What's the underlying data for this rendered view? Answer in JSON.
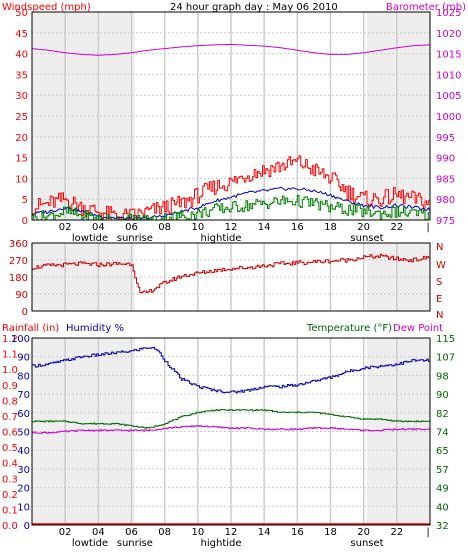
{
  "title": "24 hour graph day : May 06 2010",
  "colors": {
    "wind_speed": "#ff0000",
    "wind_avg": "#0000cc",
    "wind_low": "#008000",
    "barometer": "#cc00cc",
    "direction": "#cc0000",
    "humidity": "#0000aa",
    "temperature": "#006600",
    "dew_point": "#cc00cc",
    "rainfall": "#ff0000",
    "grid": "#cccccc",
    "shade": "#eeeeee"
  },
  "x_ticks": [
    "02",
    "04",
    "06",
    "08",
    "10",
    "12",
    "14",
    "16",
    "18",
    "20",
    "22"
  ],
  "events": [
    {
      "label": "lowtide",
      "hour": 3.5
    },
    {
      "label": "sunrise",
      "hour": 6.2
    },
    {
      "label": "hightide",
      "hour": 11.4
    },
    {
      "label": "sunset",
      "hour": 20.2
    }
  ],
  "chart_data": [
    {
      "type": "line",
      "left_label": "Windspeed (mph)",
      "right_label": "Barometer (mb)",
      "left_ticks": [
        "0",
        "5",
        "10",
        "15",
        "20",
        "25",
        "30",
        "35",
        "40",
        "45",
        "50"
      ],
      "right_ticks": [
        "975",
        "980",
        "985",
        "990",
        "995",
        "1000",
        "1005",
        "1010",
        "1015",
        "1020",
        "1025"
      ],
      "ylim_left": [
        0,
        50
      ],
      "ylim_right": [
        975,
        1025
      ],
      "series": [
        {
          "key": "barometer",
          "axis": "right",
          "x": [
            0,
            1,
            2,
            3,
            4,
            5,
            6,
            7,
            8,
            9,
            10,
            11,
            12,
            13,
            14,
            15,
            16,
            17,
            18,
            19,
            20,
            21,
            22,
            23,
            24
          ],
          "values": [
            1016.2,
            1015.8,
            1015.2,
            1014.8,
            1014.6,
            1014.8,
            1015.2,
            1015.8,
            1016.2,
            1016.6,
            1016.9,
            1017.1,
            1017.2,
            1017.0,
            1016.8,
            1016.4,
            1015.8,
            1015.2,
            1014.8,
            1014.8,
            1015.2,
            1015.8,
            1016.4,
            1016.9,
            1017.1
          ]
        },
        {
          "key": "wind_speed",
          "axis": "left",
          "x": [
            0,
            1,
            2,
            3,
            4,
            5,
            6,
            7,
            8,
            9,
            10,
            11,
            12,
            13,
            14,
            15,
            16,
            17,
            18,
            19,
            20,
            21,
            22,
            23,
            24
          ],
          "values": [
            3,
            4,
            5,
            3,
            2,
            1,
            1,
            2,
            3,
            4,
            6,
            8,
            9,
            11,
            12,
            13,
            14,
            12,
            10,
            7,
            5,
            5,
            6,
            5,
            4
          ]
        },
        {
          "key": "wind_avg",
          "axis": "left",
          "x": [
            0,
            1,
            2,
            3,
            4,
            5,
            6,
            7,
            8,
            9,
            10,
            11,
            12,
            13,
            14,
            15,
            16,
            17,
            18,
            19,
            20,
            21,
            22,
            23,
            24
          ],
          "values": [
            1.5,
            2,
            3,
            2,
            1,
            0.5,
            0.3,
            0.5,
            1,
            2,
            3,
            4.5,
            5.5,
            6.5,
            7,
            7.5,
            7.5,
            7,
            6,
            4.5,
            3.5,
            3,
            3.5,
            3,
            2.5
          ]
        },
        {
          "key": "wind_low",
          "axis": "left",
          "x": [
            0,
            1,
            2,
            3,
            4,
            5,
            6,
            7,
            8,
            9,
            10,
            11,
            12,
            13,
            14,
            15,
            16,
            17,
            18,
            19,
            20,
            21,
            22,
            23,
            24
          ],
          "values": [
            0.5,
            1,
            2,
            1,
            0.3,
            0,
            0,
            0,
            0.5,
            1,
            1.5,
            2.5,
            3,
            3.5,
            4,
            4.5,
            4.5,
            4,
            3,
            2.5,
            2,
            1.5,
            2,
            1.5,
            1
          ]
        }
      ]
    },
    {
      "type": "line",
      "left_ticks": [
        "0",
        "90",
        "180",
        "270",
        "360"
      ],
      "right_ticks": [
        "N",
        "W",
        "S",
        "E",
        "N"
      ],
      "ylim": [
        0,
        360
      ],
      "series": [
        {
          "key": "direction",
          "x": [
            0,
            1,
            2,
            3,
            4,
            5,
            6,
            6.5,
            7,
            8,
            9,
            10,
            11,
            12,
            13,
            14,
            15,
            16,
            17,
            18,
            19,
            20,
            21,
            22,
            23,
            24
          ],
          "values": [
            230,
            240,
            245,
            250,
            245,
            250,
            250,
            90,
            100,
            150,
            185,
            200,
            215,
            225,
            230,
            240,
            250,
            255,
            260,
            265,
            270,
            285,
            290,
            275,
            270,
            285
          ]
        }
      ]
    },
    {
      "type": "line",
      "left_label": "Rainfall (in)",
      "mid_label": "Humidity %",
      "right_label_a": "Temperature (°F)",
      "right_label_b": "Dew Point",
      "rain_ticks": [
        "0.0",
        "0.1",
        "0.2",
        "0.3",
        "0.4",
        "0.5",
        "0.6",
        "0.7",
        "0.8",
        "0.9",
        "1.0",
        "1.1",
        "1.2"
      ],
      "hum_ticks": [
        "0",
        "10",
        "20",
        "30",
        "40",
        "50",
        "60",
        "70",
        "80",
        "90",
        "100"
      ],
      "right_ticks": [
        "32",
        "40",
        "49",
        "57",
        "65",
        "74",
        "82",
        "90",
        "98",
        "107",
        "115"
      ],
      "ylim_humidity": [
        0,
        100
      ],
      "ylim_rain": [
        0,
        1.2
      ],
      "ylim_temp": [
        32,
        115
      ],
      "series": [
        {
          "key": "humidity",
          "axis": "humidity",
          "x": [
            0,
            1,
            2,
            3,
            4,
            5,
            6,
            7,
            7.5,
            8,
            9,
            10,
            11,
            12,
            13,
            14,
            15,
            16,
            17,
            18,
            19,
            20,
            21,
            22,
            23,
            24
          ],
          "values": [
            85,
            86,
            88,
            90,
            91,
            92,
            93,
            95,
            94,
            88,
            78,
            74,
            72,
            71,
            72,
            74,
            74,
            75,
            77,
            79,
            82,
            84,
            85,
            86,
            88,
            88
          ]
        },
        {
          "key": "temperature",
          "axis": "temp",
          "x": [
            0,
            1,
            2,
            3,
            4,
            5,
            6,
            7,
            7.5,
            8,
            9,
            10,
            11,
            12,
            13,
            14,
            15,
            16,
            17,
            18,
            19,
            20,
            21,
            22,
            23,
            24
          ],
          "values": [
            78,
            78,
            78,
            77,
            77,
            77,
            76,
            75,
            76,
            77,
            80,
            82,
            83,
            83,
            83,
            83,
            82,
            82,
            82,
            81,
            80,
            79,
            79,
            78,
            78,
            78
          ]
        },
        {
          "key": "dew_point",
          "axis": "temp",
          "x": [
            0,
            1,
            2,
            3,
            4,
            5,
            6,
            7,
            8,
            9,
            10,
            11,
            12,
            13,
            14,
            15,
            16,
            17,
            18,
            19,
            20,
            21,
            22,
            23,
            24
          ],
          "values": [
            73,
            73,
            73.5,
            74,
            74,
            74,
            74,
            74,
            75,
            75.5,
            76,
            75.5,
            75,
            75,
            74.5,
            74.5,
            74.5,
            75,
            75,
            74.5,
            74,
            74,
            74.5,
            74.5,
            74.5
          ]
        },
        {
          "key": "rainfall",
          "axis": "rain",
          "x": [
            0,
            24
          ],
          "values": [
            0,
            0
          ]
        }
      ]
    }
  ]
}
